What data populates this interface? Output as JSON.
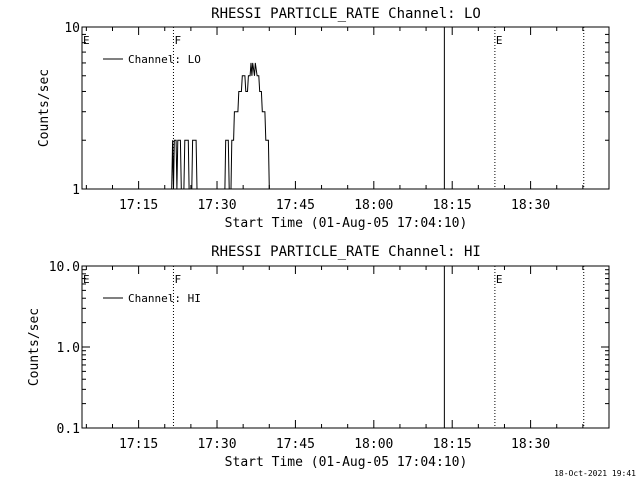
{
  "timestamp": "18-Oct-2021 19:41",
  "chart_data": [
    {
      "type": "line",
      "title": "RHESSI PARTICLE_RATE Channel: LO",
      "xlabel": "Start Time (01-Aug-05 17:04:10)",
      "ylabel": "Counts/sec",
      "yscale": "log",
      "ylim": [
        1,
        10
      ],
      "yticks": [
        {
          "value": 1,
          "label": "1"
        },
        {
          "value": 10,
          "label": "10"
        }
      ],
      "xlim": [
        "17:04:10",
        "18:45:00"
      ],
      "xticks": [
        "17:15",
        "17:30",
        "17:45",
        "18:00",
        "18:15",
        "18:30"
      ],
      "legend": {
        "placement": "top-left",
        "entries": [
          "Channel: LO"
        ]
      },
      "markers": [
        {
          "time": "17:04:10",
          "label": "E",
          "style": "none"
        },
        {
          "time": "17:21:40",
          "label": "F",
          "style": "dotted"
        },
        {
          "time": "18:13:30",
          "label": "",
          "style": "solid"
        },
        {
          "time": "18:23:10",
          "label": "E",
          "style": "dotted"
        },
        {
          "time": "18:40:10",
          "label": "",
          "style": "dotted"
        }
      ],
      "series": [
        {
          "name": "Channel: LO",
          "points": [
            [
              "17:21:20",
              1
            ],
            [
              "17:21:30",
              2
            ],
            [
              "17:21:40",
              1
            ],
            [
              "17:21:50",
              2
            ],
            [
              "17:22:10",
              2
            ],
            [
              "17:22:20",
              1
            ],
            [
              "17:22:30",
              2
            ],
            [
              "17:23:00",
              2
            ],
            [
              "17:23:10",
              1
            ],
            [
              "17:23:40",
              1
            ],
            [
              "17:23:50",
              2
            ],
            [
              "17:24:30",
              2
            ],
            [
              "17:24:40",
              1
            ],
            [
              "17:25:10",
              1
            ],
            [
              "17:25:20",
              2
            ],
            [
              "17:26:00",
              2
            ],
            [
              "17:26:10",
              1
            ],
            [
              "17:31:30",
              1
            ],
            [
              "17:31:40",
              2
            ],
            [
              "17:32:10",
              2
            ],
            [
              "17:32:20",
              1
            ],
            [
              "17:32:40",
              1
            ],
            [
              "17:32:50",
              2
            ],
            [
              "17:33:10",
              2
            ],
            [
              "17:33:20",
              3
            ],
            [
              "17:34:00",
              3
            ],
            [
              "17:34:10",
              4
            ],
            [
              "17:34:40",
              4
            ],
            [
              "17:34:50",
              5
            ],
            [
              "17:35:20",
              5
            ],
            [
              "17:35:30",
              4
            ],
            [
              "17:35:50",
              4
            ],
            [
              "17:36:00",
              5
            ],
            [
              "17:36:20",
              5
            ],
            [
              "17:36:30",
              6
            ],
            [
              "17:36:40",
              5
            ],
            [
              "17:36:50",
              6
            ],
            [
              "17:37:10",
              5
            ],
            [
              "17:37:20",
              6
            ],
            [
              "17:37:40",
              5
            ],
            [
              "17:38:00",
              5
            ],
            [
              "17:38:10",
              4
            ],
            [
              "17:38:30",
              4
            ],
            [
              "17:38:40",
              3
            ],
            [
              "17:39:10",
              3
            ],
            [
              "17:39:20",
              2
            ],
            [
              "17:39:50",
              2
            ],
            [
              "17:40:00",
              1
            ]
          ]
        }
      ]
    },
    {
      "type": "line",
      "title": "RHESSI PARTICLE_RATE Channel: HI",
      "xlabel": "Start Time (01-Aug-05 17:04:10)",
      "ylabel": "Counts/sec",
      "yscale": "log",
      "ylim": [
        0.1,
        10
      ],
      "yticks": [
        {
          "value": 0.1,
          "label": "0.1"
        },
        {
          "value": 1,
          "label": "1.0"
        },
        {
          "value": 10,
          "label": "10.0"
        }
      ],
      "xlim": [
        "17:04:10",
        "18:45:00"
      ],
      "xticks": [
        "17:15",
        "17:30",
        "17:45",
        "18:00",
        "18:15",
        "18:30"
      ],
      "legend": {
        "placement": "top-left",
        "entries": [
          "Channel: HI"
        ]
      },
      "markers": [
        {
          "time": "17:04:10",
          "label": "E",
          "style": "none"
        },
        {
          "time": "17:21:40",
          "label": "F",
          "style": "dotted"
        },
        {
          "time": "18:13:30",
          "label": "",
          "style": "solid"
        },
        {
          "time": "18:23:10",
          "label": "E",
          "style": "dotted"
        },
        {
          "time": "18:40:10",
          "label": "",
          "style": "dotted"
        }
      ],
      "series": [
        {
          "name": "Channel: HI",
          "points": []
        }
      ]
    }
  ]
}
